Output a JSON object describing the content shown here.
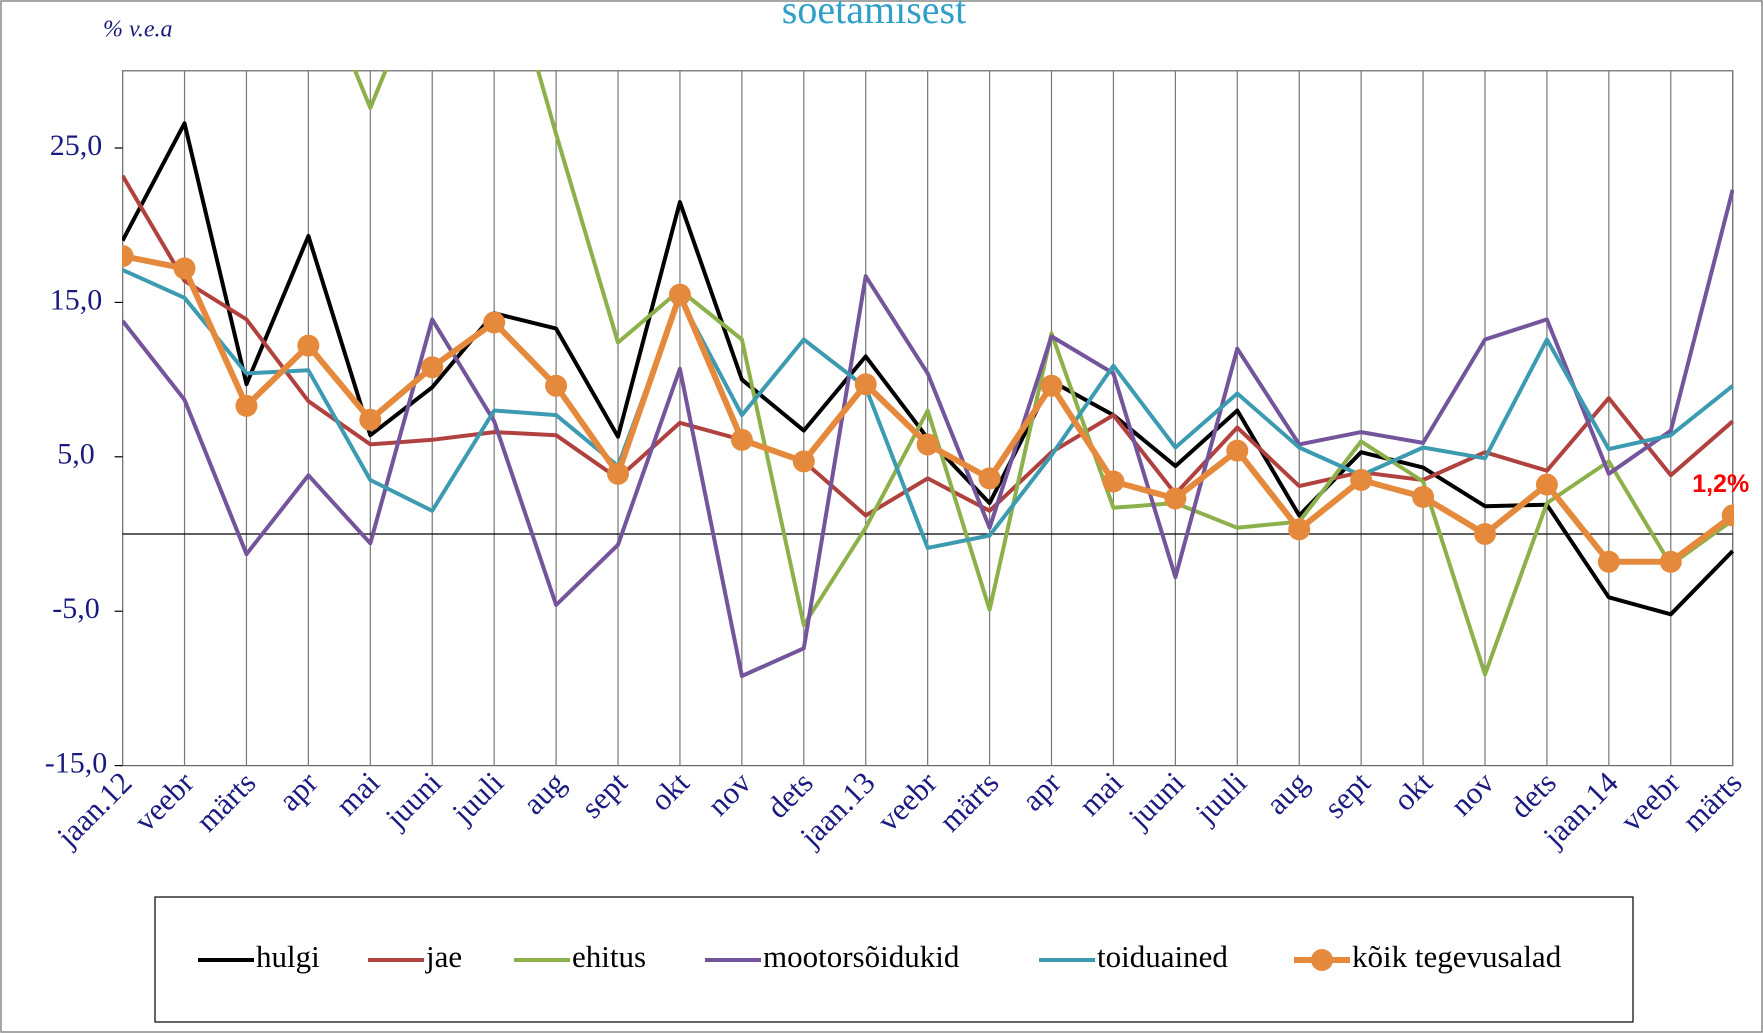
{
  "chart_data": {
    "type": "line",
    "title": "soetamisest",
    "y_label": "% v.e.a",
    "annotation": "1,2%",
    "categories": [
      "jaan.12",
      "veebr",
      "märts",
      "apr",
      "mai",
      "juuni",
      "juuli",
      "aug",
      "sept",
      "okt",
      "nov",
      "dets",
      "jaan.13",
      "veebr",
      "märts",
      "apr",
      "mai",
      "juuni",
      "juuli",
      "aug",
      "sept",
      "okt",
      "nov",
      "dets",
      "jaan.14",
      "veebr",
      "märts"
    ],
    "ylim": [
      -15,
      30
    ],
    "yticks": [
      {
        "value": 25,
        "label": "25,0"
      },
      {
        "value": 15,
        "label": "15,0"
      },
      {
        "value": 5,
        "label": "5,0"
      },
      {
        "value": -5,
        "label": "-5,0"
      },
      {
        "value": -15,
        "label": "-15,0"
      }
    ],
    "series": [
      {
        "name": "hulgi",
        "color": "#000000",
        "values": [
          19.0,
          26.6,
          9.7,
          19.3,
          6.4,
          9.5,
          14.3,
          13.3,
          6.3,
          21.5,
          10.0,
          6.7,
          11.5,
          6.2,
          2.0,
          9.9,
          7.7,
          4.4,
          8.0,
          1.2,
          5.3,
          4.3,
          1.8,
          1.9,
          -4.1,
          -5.2,
          -1.1
        ]
      },
      {
        "name": "jae",
        "color": "#b0413e",
        "values": [
          23.2,
          16.4,
          13.9,
          8.6,
          5.8,
          6.1,
          6.6,
          6.4,
          3.6,
          7.2,
          6.1,
          4.7,
          1.2,
          3.6,
          1.5,
          5.3,
          7.7,
          2.6,
          6.9,
          3.1,
          4.0,
          3.5,
          5.3,
          4.1,
          8.8,
          3.8,
          7.3
        ]
      },
      {
        "name": "ehitus",
        "color": "#8cb04a",
        "values": [
          null,
          null,
          null,
          37.4,
          27.6,
          37.4,
          40.0,
          25.9,
          12.4,
          15.8,
          12.6,
          -5.9,
          0.4,
          8.0,
          -4.9,
          13.0,
          1.7,
          2.0,
          0.4,
          0.8,
          6.0,
          3.4,
          -9.1,
          2.0,
          4.7,
          -2.0,
          0.9
        ]
      },
      {
        "name": "mootorsõidukid",
        "color": "#74549a",
        "values": [
          13.8,
          8.7,
          -1.3,
          3.8,
          -0.6,
          13.9,
          7.3,
          -4.6,
          -0.7,
          10.7,
          -9.2,
          -7.4,
          16.7,
          10.4,
          0.4,
          12.8,
          10.4,
          -2.8,
          12.0,
          5.8,
          6.6,
          5.9,
          12.6,
          13.9,
          3.9,
          6.7,
          22.3
        ]
      },
      {
        "name": "toiduained",
        "color": "#3c9bb1",
        "values": [
          17.1,
          15.3,
          10.4,
          10.6,
          3.5,
          1.5,
          8.0,
          7.7,
          4.4,
          15.3,
          7.7,
          12.6,
          9.5,
          -0.9,
          -0.1,
          5.1,
          10.9,
          5.6,
          9.1,
          5.6,
          3.8,
          5.6,
          4.9,
          12.6,
          5.5,
          6.4,
          9.6
        ]
      },
      {
        "name": "kõik tegevusalad",
        "color": "#e58a3c",
        "markers": true,
        "values": [
          18.0,
          17.2,
          8.3,
          12.2,
          7.4,
          10.8,
          13.7,
          9.6,
          3.9,
          15.5,
          6.1,
          4.7,
          9.7,
          5.8,
          3.6,
          9.6,
          3.4,
          2.3,
          5.4,
          0.3,
          3.5,
          2.4,
          0.0,
          3.2,
          -1.8,
          -1.8,
          1.2
        ]
      }
    ]
  }
}
